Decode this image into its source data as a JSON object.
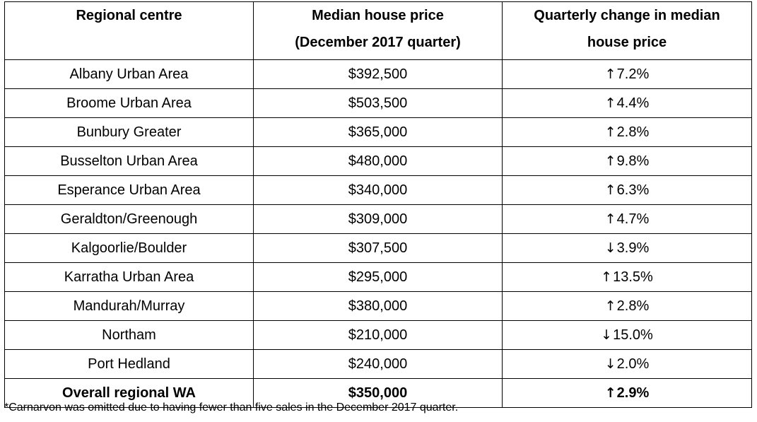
{
  "table": {
    "headers": {
      "col1": [
        "Regional centre"
      ],
      "col2": [
        "Median house price",
        "(December 2017 quarter)"
      ],
      "col3": [
        "Quarterly change in median",
        "house price"
      ]
    },
    "rows": [
      {
        "centre": "Albany Urban Area",
        "price": "$392,500",
        "arrow": "↑",
        "change": "7.2%"
      },
      {
        "centre": "Broome Urban Area",
        "price": "$503,500",
        "arrow": "↑",
        "change": "4.4%"
      },
      {
        "centre": "Bunbury Greater",
        "price": "$365,000",
        "arrow": "↑",
        "change": "2.8%"
      },
      {
        "centre": "Busselton Urban Area",
        "price": "$480,000",
        "arrow": "↑",
        "change": "9.8%"
      },
      {
        "centre": "Esperance Urban Area",
        "price": "$340,000",
        "arrow": "↑",
        "change": "6.3%"
      },
      {
        "centre": "Geraldton/Greenough",
        "price": "$309,000",
        "arrow": "↑",
        "change": "4.7%"
      },
      {
        "centre": "Kalgoorlie/Boulder",
        "price": "$307,500",
        "arrow": "↓",
        "change": "3.9%"
      },
      {
        "centre": "Karratha Urban Area",
        "price": "$295,000",
        "arrow": "↑",
        "change": "13.5%"
      },
      {
        "centre": "Mandurah/Murray",
        "price": "$380,000",
        "arrow": "↑",
        "change": "2.8%"
      },
      {
        "centre": "Northam",
        "price": "$210,000",
        "arrow": "↓",
        "change": "15.0%"
      },
      {
        "centre": "Port Hedland",
        "price": "$240,000",
        "arrow": "↓",
        "change": "2.0%"
      }
    ],
    "total": {
      "centre": "Overall regional WA",
      "price": "$350,000",
      "arrow": "↑",
      "change": "2.9%"
    }
  },
  "footnote": "*Carnarvon was omitted due to having fewer than five sales in the December 2017 quarter."
}
